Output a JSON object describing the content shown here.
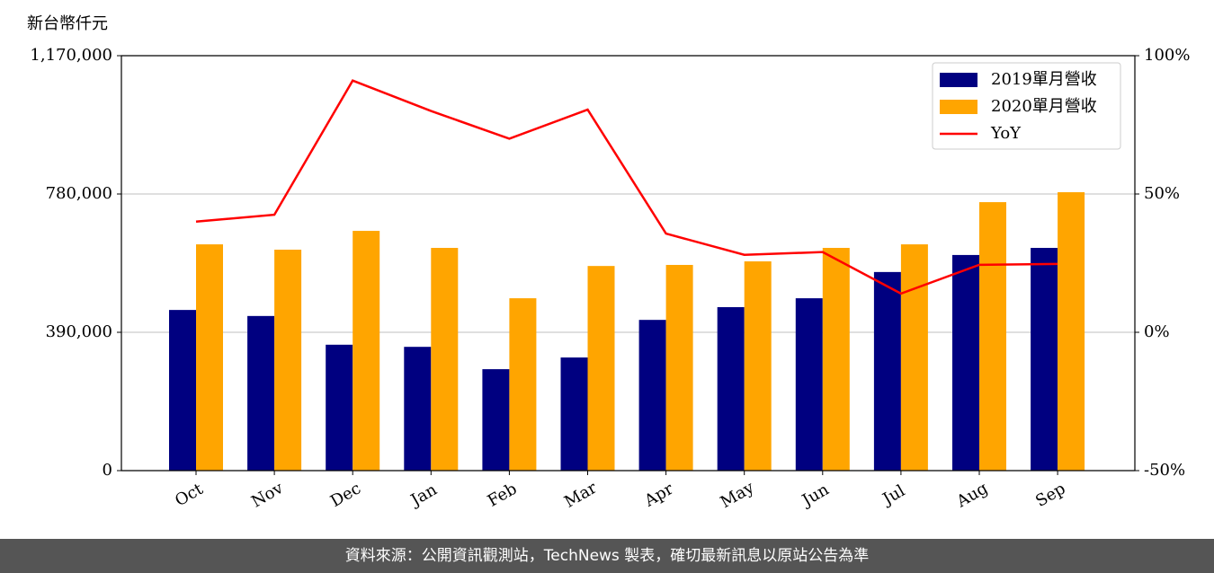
{
  "chart_data": {
    "type": "bar",
    "y_label": "新台幣仟元",
    "categories": [
      "Oct",
      "Nov",
      "Dec",
      "Jan",
      "Feb",
      "Mar",
      "Apr",
      "May",
      "Jun",
      "Jul",
      "Aug",
      "Sep"
    ],
    "series": [
      {
        "name": "2019單月營收",
        "color": "#000080",
        "values": [
          453000,
          436000,
          355000,
          349000,
          286000,
          319000,
          425000,
          461000,
          486000,
          560000,
          608000,
          628000
        ]
      },
      {
        "name": "2020單月營收",
        "color": "#ffa500",
        "values": [
          638000,
          623000,
          676000,
          628000,
          486000,
          577000,
          580000,
          590000,
          628000,
          638000,
          757000,
          785000
        ]
      },
      {
        "name": "YoY",
        "color": "#ff0000",
        "type": "line",
        "axis": "y2",
        "values": [
          40,
          42.5,
          91,
          80,
          70,
          80.5,
          35.7,
          28,
          29,
          14,
          24.4,
          24.7
        ]
      }
    ],
    "ylim": [
      0,
      1170000
    ],
    "yticks": [
      0,
      {
        "value": 390000,
        "label": "390,000"
      },
      {
        "value": 780000,
        "label": "780,000"
      },
      {
        "value": 1170000,
        "label": "1,170,000"
      }
    ],
    "y2lim": [
      -50,
      100
    ],
    "y2ticks": [
      {
        "value": -50,
        "label": "-50%"
      },
      {
        "value": 0,
        "label": "0%"
      },
      {
        "value": 50,
        "label": "50%"
      },
      {
        "value": 100,
        "label": "100%"
      }
    ],
    "grid": true,
    "legend": "upper right"
  },
  "footer": "資料來源：公開資訊觀測站，TechNews 製表，確切最新訊息以原站公告為準"
}
